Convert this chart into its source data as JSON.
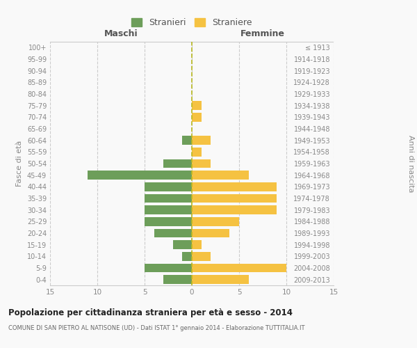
{
  "age_groups": [
    "0-4",
    "5-9",
    "10-14",
    "15-19",
    "20-24",
    "25-29",
    "30-34",
    "35-39",
    "40-44",
    "45-49",
    "50-54",
    "55-59",
    "60-64",
    "65-69",
    "70-74",
    "75-79",
    "80-84",
    "85-89",
    "90-94",
    "95-99",
    "100+"
  ],
  "birth_years": [
    "2009-2013",
    "2004-2008",
    "1999-2003",
    "1994-1998",
    "1989-1993",
    "1984-1988",
    "1979-1983",
    "1974-1978",
    "1969-1973",
    "1964-1968",
    "1959-1963",
    "1954-1958",
    "1949-1953",
    "1944-1948",
    "1939-1943",
    "1934-1938",
    "1929-1933",
    "1924-1928",
    "1919-1923",
    "1914-1918",
    "≤ 1913"
  ],
  "males": [
    3,
    5,
    1,
    2,
    4,
    5,
    5,
    5,
    5,
    11,
    3,
    0,
    1,
    0,
    0,
    0,
    0,
    0,
    0,
    0,
    0
  ],
  "females": [
    6,
    10,
    2,
    1,
    4,
    5,
    9,
    9,
    9,
    6,
    2,
    1,
    2,
    0,
    1,
    1,
    0,
    0,
    0,
    0,
    0
  ],
  "male_color": "#6d9e5a",
  "female_color": "#f5c242",
  "grid_color": "#cccccc",
  "axis_label_color": "#888888",
  "title": "Popolazione per cittadinanza straniera per età e sesso - 2014",
  "subtitle": "COMUNE DI SAN PIETRO AL NATISONE (UD) - Dati ISTAT 1° gennaio 2014 - Elaborazione TUTTITALIA.IT",
  "ylabel_left": "Fasce di età",
  "ylabel_right": "Anni di nascita",
  "xlim": 15,
  "legend_stranieri": "Stranieri",
  "legend_straniere": "Straniere",
  "bg_color": "#f9f9f9",
  "maschi_label": "Maschi",
  "femmine_label": "Femmine"
}
